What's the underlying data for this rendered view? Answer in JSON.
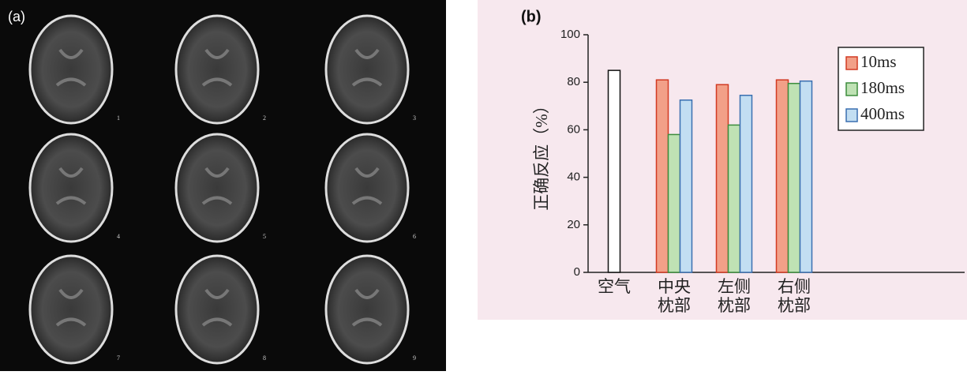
{
  "panel_a": {
    "label": "(a)",
    "image_numbers": [
      "1",
      "2",
      "3",
      "4",
      "5",
      "6",
      "7",
      "8",
      "9"
    ]
  },
  "chart_data": {
    "type": "bar",
    "panel_label": "(b)",
    "ylabel": "正确反应（%）",
    "categories": [
      "空气",
      "中央\n枕部",
      "左侧\n枕部",
      "右侧\n枕部"
    ],
    "series": [
      {
        "color": "#ffffff",
        "edgecolor": "#111111",
        "values": [
          85,
          null,
          null,
          null
        ]
      },
      {
        "name": "10ms",
        "color": "#f2a088",
        "edgecolor": "#d23a22",
        "values": [
          null,
          81,
          79,
          81
        ]
      },
      {
        "name": "180ms",
        "color": "#bfe2b4",
        "edgecolor": "#3c8c3c",
        "values": [
          null,
          58,
          62,
          79.5
        ]
      },
      {
        "name": "400ms",
        "color": "#c2def2",
        "edgecolor": "#3a6fb0",
        "values": [
          null,
          72.5,
          74.5,
          80.5
        ]
      }
    ],
    "ylim": [
      0,
      100
    ],
    "yticks": [
      0,
      20,
      40,
      60,
      80,
      100
    ],
    "grid": false,
    "legend": "upper right"
  }
}
